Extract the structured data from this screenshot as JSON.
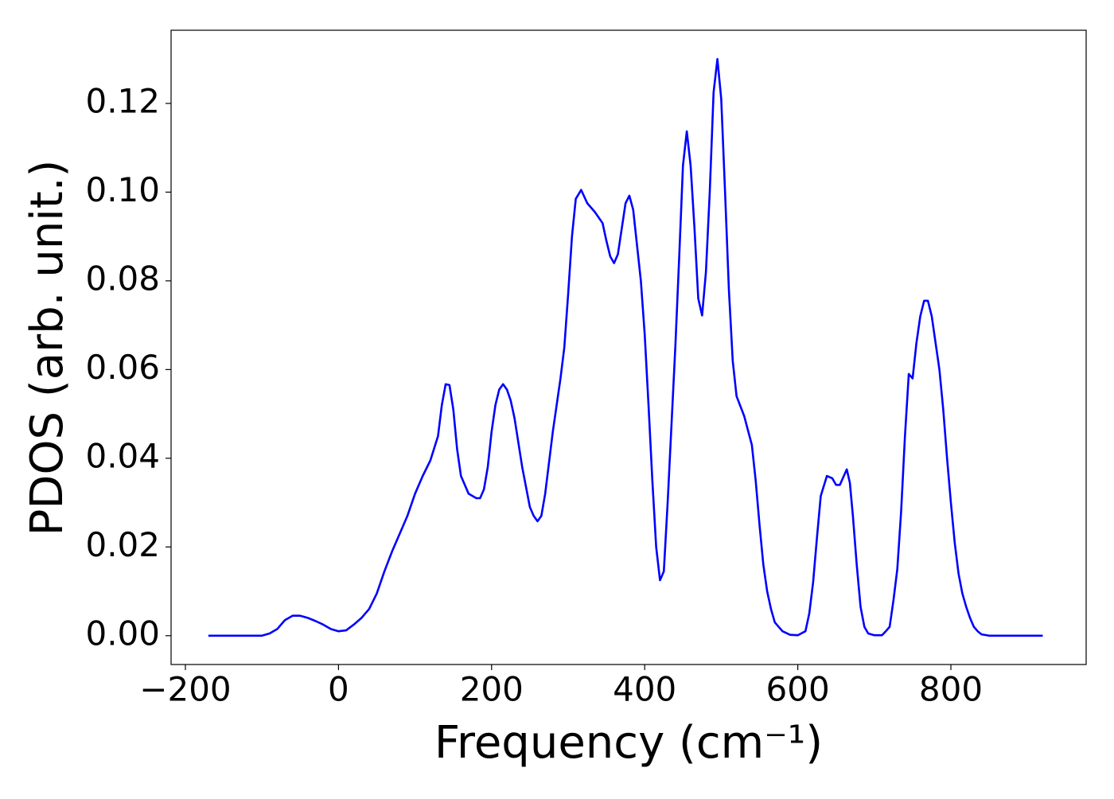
{
  "chart_data": {
    "type": "line",
    "xlabel": "Frequency (cm⁻¹)",
    "ylabel": "PDOS (arb. unit.)",
    "xlim": [
      -218.7,
      976.7
    ],
    "ylim": [
      -0.0065,
      0.1365
    ],
    "xticks": [
      {
        "value": -200,
        "label": "−200"
      },
      0,
      200,
      400,
      600,
      800
    ],
    "yticks": [
      {
        "value": 0,
        "label": "0.00"
      },
      0.02,
      0.04,
      0.06,
      0.08,
      {
        "value": 0.1,
        "label": "0.10"
      },
      0.12
    ],
    "grid": false,
    "series": [
      {
        "color": "#0000ff",
        "x": [
          -170,
          -100,
          -90,
          -80,
          -70,
          -60,
          -50,
          -40,
          -30,
          -20,
          -10,
          0,
          10,
          20,
          30,
          40,
          50,
          60,
          70,
          80,
          90,
          100,
          110,
          120,
          130,
          135,
          140,
          145,
          150,
          155,
          160,
          170,
          180,
          185,
          190,
          195,
          200,
          205,
          210,
          215,
          220,
          225,
          230,
          240,
          250,
          255,
          260,
          265,
          270,
          280,
          290,
          295,
          300,
          305,
          310,
          317,
          325,
          335,
          345,
          350,
          355,
          360,
          365,
          375,
          380,
          385,
          390,
          395,
          400,
          405,
          410,
          415,
          420,
          425,
          430,
          440,
          445,
          450,
          455,
          460,
          465,
          470,
          475,
          480,
          485,
          490,
          495,
          500,
          505,
          510,
          515,
          520,
          530,
          540,
          545,
          550,
          555,
          560,
          565,
          570,
          580,
          590,
          600,
          610,
          615,
          620,
          625,
          630,
          638,
          645,
          650,
          655,
          664,
          668,
          672,
          677,
          682,
          687,
          692,
          700,
          710,
          715,
          720,
          725,
          730,
          735,
          740,
          745,
          750,
          755,
          760,
          765,
          770,
          775,
          780,
          785,
          790,
          795,
          800,
          805,
          810,
          815,
          820,
          825,
          830,
          835,
          840,
          850,
          920
        ],
        "values": [
          0,
          0,
          0.0005,
          0.0015,
          0.0035,
          0.0045,
          0.0045,
          0.004,
          0.0033,
          0.0025,
          0.0015,
          0.001,
          0.0012,
          0.0025,
          0.004,
          0.006,
          0.0095,
          0.0145,
          0.019,
          0.023,
          0.027,
          0.032,
          0.036,
          0.0395,
          0.045,
          0.052,
          0.0567,
          0.0565,
          0.051,
          0.042,
          0.036,
          0.032,
          0.031,
          0.031,
          0.033,
          0.038,
          0.046,
          0.052,
          0.0555,
          0.0567,
          0.0555,
          0.053,
          0.049,
          0.038,
          0.029,
          0.027,
          0.0258,
          0.027,
          0.032,
          0.046,
          0.058,
          0.065,
          0.077,
          0.09,
          0.0985,
          0.1005,
          0.0975,
          0.0955,
          0.093,
          0.089,
          0.0855,
          0.084,
          0.086,
          0.0975,
          0.0992,
          0.096,
          0.088,
          0.08,
          0.068,
          0.052,
          0.035,
          0.02,
          0.0125,
          0.0145,
          0.03,
          0.065,
          0.085,
          0.106,
          0.1137,
          0.106,
          0.092,
          0.076,
          0.0722,
          0.082,
          0.1,
          0.1225,
          0.13,
          0.121,
          0.1,
          0.078,
          0.062,
          0.054,
          0.0495,
          0.043,
          0.035,
          0.025,
          0.016,
          0.01,
          0.006,
          0.003,
          0.001,
          0.0002,
          0.0001,
          0.001,
          0.005,
          0.012,
          0.022,
          0.0315,
          0.036,
          0.0355,
          0.034,
          0.034,
          0.0375,
          0.0345,
          0.027,
          0.016,
          0.0065,
          0.002,
          0.0005,
          0.0001,
          0.0001,
          0.001,
          0.002,
          0.008,
          0.015,
          0.028,
          0.045,
          0.059,
          0.058,
          0.066,
          0.072,
          0.0755,
          0.0755,
          0.072,
          0.066,
          0.06,
          0.051,
          0.04,
          0.03,
          0.021,
          0.014,
          0.0095,
          0.0065,
          0.004,
          0.002,
          0.001,
          0.0003,
          0,
          0
        ]
      }
    ]
  }
}
